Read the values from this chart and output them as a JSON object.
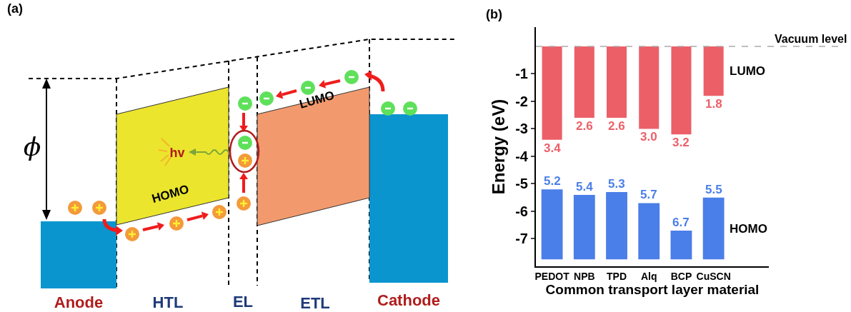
{
  "chart_data": [
    {
      "type": "other",
      "title": "(a)",
      "annotations": [
        "Anode",
        "HTL",
        "EL",
        "ETL",
        "Cathode",
        "LUMO",
        "HOMO",
        "hv",
        "ϕ"
      ]
    },
    {
      "type": "bar",
      "title": "(b)",
      "xlabel": "Common transport layer material",
      "ylabel": "Energy (eV)",
      "categories": [
        "PEDOT",
        "NPB",
        "TPD",
        "Alq",
        "BCP",
        "CuSCN"
      ],
      "series": [
        {
          "name": "LUMO",
          "color": "#ec5f67",
          "base": [
            0,
            0,
            0,
            0,
            0,
            0
          ],
          "values": [
            -3.4,
            -2.6,
            -2.6,
            -3.0,
            -3.2,
            -1.8
          ]
        },
        {
          "name": "HOMO",
          "color": "#4a7ee8",
          "base": [
            -5.2,
            -5.4,
            -5.3,
            -5.7,
            -6.7,
            -5.5
          ],
          "values": [
            -2.55,
            -2.35,
            -2.45,
            -2.05,
            -1.05,
            -2.25
          ]
        }
      ],
      "annotations": [
        {
          "text": "3.4",
          "x": "PEDOT",
          "y": -3.4
        },
        {
          "text": "2.6",
          "x": "NPB",
          "y": -2.6
        },
        {
          "text": "2.6",
          "x": "TPD",
          "y": -2.6
        },
        {
          "text": "3.0",
          "x": "Alq",
          "y": -3.0
        },
        {
          "text": "3.2",
          "x": "BCP",
          "y": -3.2
        },
        {
          "text": "1.8",
          "x": "CuSCN",
          "y": -1.8
        },
        {
          "text": "5.2",
          "x": "PEDOT",
          "y": -5.2
        },
        {
          "text": "5.4",
          "x": "NPB",
          "y": -5.4
        },
        {
          "text": "5.3",
          "x": "TPD",
          "y": -5.3
        },
        {
          "text": "5.7",
          "x": "Alq",
          "y": -5.7
        },
        {
          "text": "6.7",
          "x": "BCP",
          "y": -6.7
        },
        {
          "text": "5.5",
          "x": "CuSCN",
          "y": -5.5
        }
      ],
      "ylim": [
        -8,
        0.7
      ],
      "yticks": [
        -1,
        -2,
        -3,
        -4,
        -5,
        -6,
        -7
      ],
      "ref_lines": [
        {
          "axis": "y",
          "value": 0,
          "label": "Vacuum level",
          "color": "#aaaaaa",
          "line_style": "dashed"
        }
      ]
    }
  ]
}
